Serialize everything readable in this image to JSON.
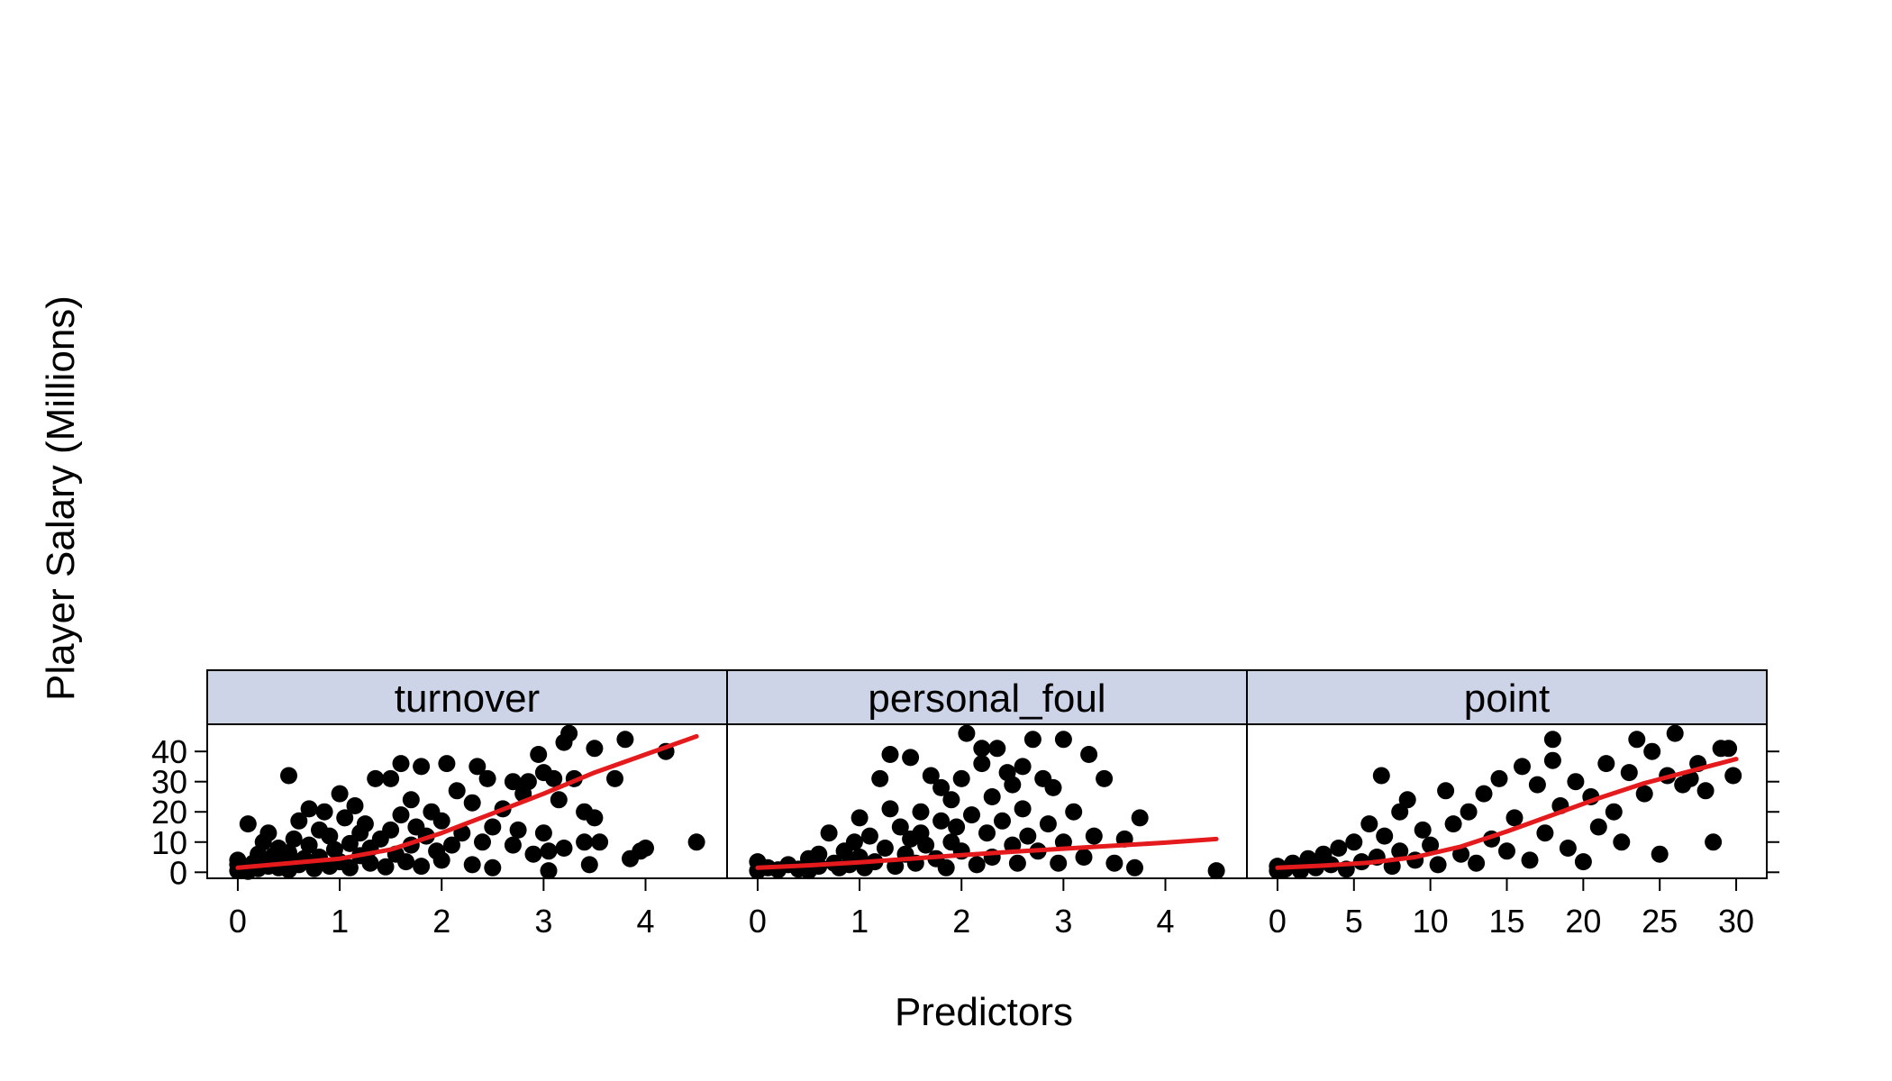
{
  "chart_data": {
    "type": "scatter",
    "ylabel": "Player Salary (Millions)",
    "xlabel": "Predictors",
    "ylim": [
      -2,
      49
    ],
    "y_ticks": [
      0,
      10,
      20,
      30,
      40
    ],
    "y_tick_labels": [
      "0",
      "10",
      "20",
      "30",
      "40"
    ],
    "strip_color": "#cdd4e8",
    "point_color": "#000000",
    "smooth_color": "#e41a1c",
    "panels": [
      {
        "name": "turnover",
        "xlim": [
          -0.3,
          4.8
        ],
        "x_ticks": [
          0,
          1,
          2,
          3,
          4
        ],
        "x_tick_labels": [
          "0",
          "1",
          "2",
          "3",
          "4"
        ],
        "points": [
          [
            0.0,
            0.5
          ],
          [
            0.0,
            2.5
          ],
          [
            0.0,
            4.0
          ],
          [
            0.05,
            1.0
          ],
          [
            0.1,
            16.0
          ],
          [
            0.1,
            0.3
          ],
          [
            0.15,
            3.0
          ],
          [
            0.2,
            1.2
          ],
          [
            0.2,
            6.0
          ],
          [
            0.25,
            10.0
          ],
          [
            0.3,
            2.0
          ],
          [
            0.3,
            13.0
          ],
          [
            0.35,
            5.5
          ],
          [
            0.4,
            1.5
          ],
          [
            0.4,
            8.0
          ],
          [
            0.45,
            3.5
          ],
          [
            0.5,
            0.8
          ],
          [
            0.5,
            6.5
          ],
          [
            0.5,
            32.0
          ],
          [
            0.55,
            11.0
          ],
          [
            0.6,
            2.5
          ],
          [
            0.6,
            17.0
          ],
          [
            0.65,
            4.5
          ],
          [
            0.7,
            9.0
          ],
          [
            0.7,
            21.0
          ],
          [
            0.75,
            1.2
          ],
          [
            0.8,
            14.0
          ],
          [
            0.8,
            5.0
          ],
          [
            0.85,
            20.0
          ],
          [
            0.9,
            2.0
          ],
          [
            0.9,
            12.0
          ],
          [
            0.95,
            7.5
          ],
          [
            1.0,
            26.0
          ],
          [
            1.0,
            3.5
          ],
          [
            1.05,
            18.0
          ],
          [
            1.1,
            9.5
          ],
          [
            1.1,
            1.5
          ],
          [
            1.15,
            22.0
          ],
          [
            1.2,
            5.5
          ],
          [
            1.2,
            13.0
          ],
          [
            1.25,
            16.0
          ],
          [
            1.3,
            3.0
          ],
          [
            1.3,
            8.0
          ],
          [
            1.35,
            31.0
          ],
          [
            1.4,
            11.0
          ],
          [
            1.45,
            1.8
          ],
          [
            1.5,
            31.0
          ],
          [
            1.5,
            14.0
          ],
          [
            1.55,
            6.0
          ],
          [
            1.6,
            36.0
          ],
          [
            1.6,
            19.0
          ],
          [
            1.65,
            3.5
          ],
          [
            1.7,
            24.0
          ],
          [
            1.7,
            9.0
          ],
          [
            1.75,
            15.0
          ],
          [
            1.8,
            35.0
          ],
          [
            1.8,
            2.0
          ],
          [
            1.85,
            12.0
          ],
          [
            1.9,
            20.0
          ],
          [
            1.95,
            7.0
          ],
          [
            2.0,
            17.0
          ],
          [
            2.0,
            4.0
          ],
          [
            2.05,
            36.0
          ],
          [
            2.1,
            9.0
          ],
          [
            2.15,
            27.0
          ],
          [
            2.2,
            13.0
          ],
          [
            2.3,
            23.0
          ],
          [
            2.3,
            2.5
          ],
          [
            2.35,
            35.0
          ],
          [
            2.4,
            10.0
          ],
          [
            2.45,
            31.0
          ],
          [
            2.5,
            1.5
          ],
          [
            2.5,
            15.0
          ],
          [
            2.6,
            21.0
          ],
          [
            2.7,
            30.0
          ],
          [
            2.7,
            9.0
          ],
          [
            2.75,
            14.0
          ],
          [
            2.8,
            26.0
          ],
          [
            2.85,
            30.0
          ],
          [
            2.9,
            6.0
          ],
          [
            2.95,
            39.0
          ],
          [
            3.0,
            13.0
          ],
          [
            3.0,
            33.0
          ],
          [
            3.05,
            7.0
          ],
          [
            3.05,
            0.5
          ],
          [
            3.1,
            31.0
          ],
          [
            3.15,
            24.0
          ],
          [
            3.2,
            8.0
          ],
          [
            3.2,
            43.0
          ],
          [
            3.25,
            46.0
          ],
          [
            3.3,
            31.0
          ],
          [
            3.4,
            10.0
          ],
          [
            3.4,
            20.0
          ],
          [
            3.45,
            2.5
          ],
          [
            3.5,
            18.0
          ],
          [
            3.5,
            41.0
          ],
          [
            3.55,
            10.0
          ],
          [
            3.7,
            31.0
          ],
          [
            3.8,
            44.0
          ],
          [
            3.85,
            4.5
          ],
          [
            3.95,
            7.0
          ],
          [
            4.0,
            8.0
          ],
          [
            4.2,
            40.0
          ],
          [
            4.5,
            10.0
          ]
        ],
        "smooth": [
          [
            0.0,
            1.5
          ],
          [
            0.5,
            3.0
          ],
          [
            1.0,
            4.5
          ],
          [
            1.5,
            7.5
          ],
          [
            2.0,
            13.0
          ],
          [
            2.5,
            19.5
          ],
          [
            3.0,
            26.0
          ],
          [
            3.5,
            33.0
          ],
          [
            4.0,
            39.0
          ],
          [
            4.5,
            45.0
          ]
        ]
      },
      {
        "name": "personal_foul",
        "xlim": [
          -0.3,
          4.8
        ],
        "x_ticks": [
          0,
          1,
          2,
          3,
          4
        ],
        "x_tick_labels": [
          "0",
          "1",
          "2",
          "3",
          "4"
        ],
        "points": [
          [
            0.0,
            0.5
          ],
          [
            0.0,
            3.5
          ],
          [
            0.1,
            1.5
          ],
          [
            0.2,
            0.8
          ],
          [
            0.3,
            2.5
          ],
          [
            0.4,
            1.0
          ],
          [
            0.5,
            4.5
          ],
          [
            0.5,
            0.5
          ],
          [
            0.6,
            2.0
          ],
          [
            0.6,
            6.0
          ],
          [
            0.7,
            13.0
          ],
          [
            0.75,
            3.0
          ],
          [
            0.8,
            1.5
          ],
          [
            0.85,
            7.0
          ],
          [
            0.9,
            2.5
          ],
          [
            0.95,
            10.0
          ],
          [
            1.0,
            5.0
          ],
          [
            1.0,
            18.0
          ],
          [
            1.05,
            1.5
          ],
          [
            1.1,
            12.0
          ],
          [
            1.15,
            3.5
          ],
          [
            1.2,
            31.0
          ],
          [
            1.25,
            8.0
          ],
          [
            1.3,
            21.0
          ],
          [
            1.3,
            39.0
          ],
          [
            1.35,
            2.0
          ],
          [
            1.4,
            15.0
          ],
          [
            1.45,
            6.0
          ],
          [
            1.5,
            38.0
          ],
          [
            1.5,
            11.0
          ],
          [
            1.55,
            3.0
          ],
          [
            1.6,
            20.0
          ],
          [
            1.6,
            13.0
          ],
          [
            1.65,
            9.0
          ],
          [
            1.7,
            32.0
          ],
          [
            1.75,
            4.5
          ],
          [
            1.8,
            17.0
          ],
          [
            1.8,
            28.0
          ],
          [
            1.85,
            1.5
          ],
          [
            1.9,
            24.0
          ],
          [
            1.9,
            10.0
          ],
          [
            1.95,
            15.0
          ],
          [
            2.0,
            31.0
          ],
          [
            2.0,
            7.0
          ],
          [
            2.05,
            46.0
          ],
          [
            2.1,
            19.0
          ],
          [
            2.15,
            2.5
          ],
          [
            2.2,
            36.0
          ],
          [
            2.2,
            41.0
          ],
          [
            2.25,
            13.0
          ],
          [
            2.3,
            25.0
          ],
          [
            2.3,
            5.0
          ],
          [
            2.35,
            41.0
          ],
          [
            2.4,
            17.0
          ],
          [
            2.45,
            33.0
          ],
          [
            2.5,
            9.0
          ],
          [
            2.5,
            29.0
          ],
          [
            2.55,
            3.0
          ],
          [
            2.6,
            35.0
          ],
          [
            2.6,
            21.0
          ],
          [
            2.65,
            12.0
          ],
          [
            2.7,
            44.0
          ],
          [
            2.75,
            7.0
          ],
          [
            2.8,
            31.0
          ],
          [
            2.85,
            16.0
          ],
          [
            2.9,
            28.0
          ],
          [
            2.95,
            3.0
          ],
          [
            3.0,
            44.0
          ],
          [
            3.0,
            10.0
          ],
          [
            3.1,
            20.0
          ],
          [
            3.2,
            5.0
          ],
          [
            3.25,
            39.0
          ],
          [
            3.3,
            12.0
          ],
          [
            3.4,
            31.0
          ],
          [
            3.5,
            3.0
          ],
          [
            3.6,
            11.0
          ],
          [
            3.7,
            1.5
          ],
          [
            3.75,
            18.0
          ],
          [
            4.5,
            0.5
          ]
        ],
        "smooth": [
          [
            0.0,
            1.5
          ],
          [
            0.5,
            2.3
          ],
          [
            1.0,
            3.3
          ],
          [
            1.5,
            4.5
          ],
          [
            2.0,
            5.7
          ],
          [
            2.5,
            6.8
          ],
          [
            3.0,
            7.8
          ],
          [
            3.5,
            8.8
          ],
          [
            4.0,
            9.8
          ],
          [
            4.5,
            11.0
          ]
        ]
      },
      {
        "name": "point",
        "xlim": [
          -2,
          32
        ],
        "x_ticks": [
          0,
          5,
          10,
          15,
          20,
          25,
          30
        ],
        "x_tick_labels": [
          "0",
          "5",
          "10",
          "15",
          "20",
          "25",
          "30"
        ],
        "points": [
          [
            0.0,
            0.5
          ],
          [
            0.0,
            2.0
          ],
          [
            0.5,
            1.0
          ],
          [
            1.0,
            3.0
          ],
          [
            1.5,
            0.5
          ],
          [
            2.0,
            4.5
          ],
          [
            2.5,
            1.5
          ],
          [
            3.0,
            6.0
          ],
          [
            3.5,
            2.5
          ],
          [
            4.0,
            8.0
          ],
          [
            4.5,
            1.0
          ],
          [
            5.0,
            10.0
          ],
          [
            5.5,
            3.5
          ],
          [
            6.0,
            16.0
          ],
          [
            6.5,
            5.0
          ],
          [
            6.8,
            32.0
          ],
          [
            7.0,
            12.0
          ],
          [
            7.5,
            2.0
          ],
          [
            8.0,
            20.0
          ],
          [
            8.0,
            7.0
          ],
          [
            8.5,
            24.0
          ],
          [
            9.0,
            4.0
          ],
          [
            9.5,
            14.0
          ],
          [
            10.0,
            9.0
          ],
          [
            10.5,
            2.5
          ],
          [
            11.0,
            27.0
          ],
          [
            11.5,
            16.0
          ],
          [
            12.0,
            6.0
          ],
          [
            12.5,
            20.0
          ],
          [
            13.0,
            3.0
          ],
          [
            13.5,
            26.0
          ],
          [
            14.0,
            11.0
          ],
          [
            14.5,
            31.0
          ],
          [
            15.0,
            7.0
          ],
          [
            15.5,
            18.0
          ],
          [
            16.0,
            35.0
          ],
          [
            16.5,
            4.0
          ],
          [
            17.0,
            29.0
          ],
          [
            17.5,
            13.0
          ],
          [
            18.0,
            44.0
          ],
          [
            18.0,
            37.0
          ],
          [
            18.5,
            22.0
          ],
          [
            19.0,
            8.0
          ],
          [
            19.5,
            30.0
          ],
          [
            20.0,
            3.5
          ],
          [
            20.5,
            25.0
          ],
          [
            21.0,
            15.0
          ],
          [
            21.5,
            36.0
          ],
          [
            22.0,
            20.0
          ],
          [
            22.5,
            10.0
          ],
          [
            23.0,
            33.0
          ],
          [
            23.5,
            44.0
          ],
          [
            24.0,
            26.0
          ],
          [
            24.5,
            40.0
          ],
          [
            25.0,
            6.0
          ],
          [
            25.5,
            32.0
          ],
          [
            26.0,
            46.0
          ],
          [
            26.5,
            29.0
          ],
          [
            27.0,
            31.0
          ],
          [
            27.5,
            36.0
          ],
          [
            28.0,
            27.0
          ],
          [
            28.5,
            10.0
          ],
          [
            29.0,
            41.0
          ],
          [
            29.5,
            41.0
          ],
          [
            29.8,
            32.0
          ]
        ],
        "smooth": [
          [
            0.0,
            1.5
          ],
          [
            3.0,
            2.2
          ],
          [
            6.0,
            3.2
          ],
          [
            9.0,
            5.0
          ],
          [
            12.0,
            8.5
          ],
          [
            15.0,
            13.5
          ],
          [
            18.0,
            19.0
          ],
          [
            21.0,
            24.5
          ],
          [
            24.0,
            29.5
          ],
          [
            27.0,
            33.5
          ],
          [
            30.0,
            37.5
          ]
        ]
      }
    ]
  }
}
